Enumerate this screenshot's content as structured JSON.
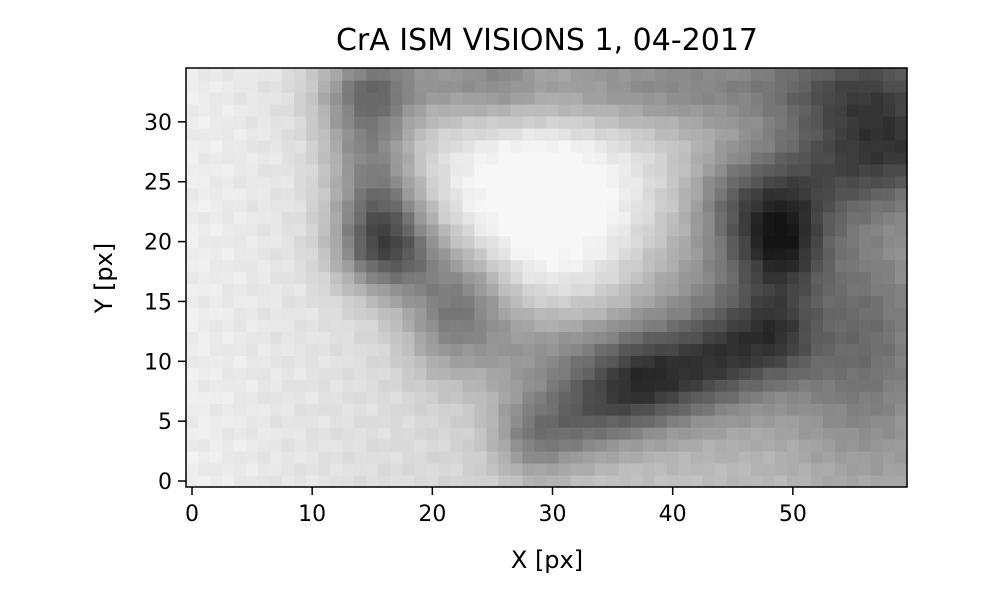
{
  "chart_data": {
    "type": "heatmap",
    "title": "CrA ISM VISIONS 1, 04-2017",
    "xlabel": "X [px]",
    "ylabel": "Y [px]",
    "xlim": [
      -0.5,
      59.5
    ],
    "ylim": [
      -0.5,
      34.5
    ],
    "x_ticks": [
      0,
      10,
      20,
      30,
      40,
      50
    ],
    "y_ticks": [
      0,
      5,
      10,
      15,
      20,
      25,
      30
    ],
    "grid": false,
    "colormap": "gray",
    "dimensions": {
      "nx": 60,
      "ny": 35
    },
    "image_description": "Grayscale intensity map: bright uniform region at left, a dark arc from (14,33) down to (20,18), a bright blob centered near (31,22), a dark spot near (49,20), a dark band across the top-right, and a dark diagonal streak from (29,4) to (48,12)."
  }
}
